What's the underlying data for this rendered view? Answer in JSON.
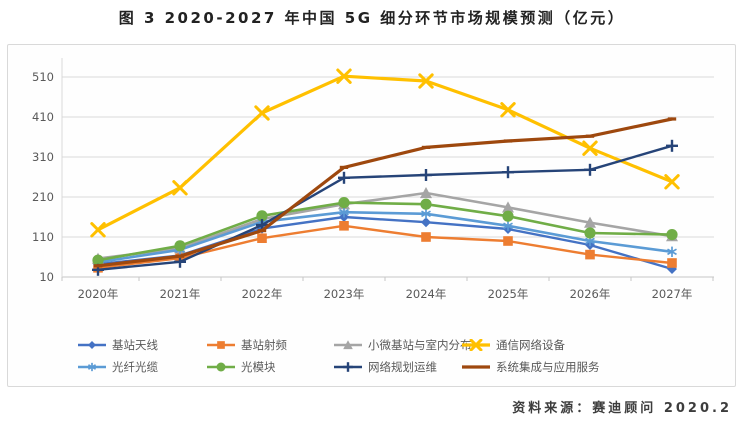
{
  "title": "图 3 2020-2027 年中国 5G 细分环节市场规模预测（亿元）",
  "source": "资料来源：赛迪顾问  2020.2",
  "chart_data": {
    "type": "line",
    "title": "图 3 2020-2027 年中国 5G 细分环节市场规模预测（亿元）",
    "unit": "亿元",
    "categories": [
      "2020年",
      "2021年",
      "2022年",
      "2023年",
      "2024年",
      "2025年",
      "2026年",
      "2027年"
    ],
    "yticks": [
      10,
      110,
      210,
      310,
      410,
      510
    ],
    "ylim": [
      10,
      560
    ],
    "grid": true,
    "legend_position": "bottom",
    "series": [
      {
        "name": "基站天线",
        "color": "#4472C4",
        "marker": "diamond",
        "values": [
          42,
          64,
          131,
          160,
          147,
          130,
          90,
          30
        ]
      },
      {
        "name": "基站射频",
        "color": "#ED7D31",
        "marker": "square",
        "values": [
          33,
          57,
          107,
          138,
          110,
          100,
          66,
          45
        ]
      },
      {
        "name": "小微基站与室内分布",
        "color": "#A5A5A5",
        "marker": "triangle",
        "values": [
          56,
          82,
          155,
          192,
          220,
          184,
          146,
          112
        ]
      },
      {
        "name": "通信网络设备",
        "color": "#FFC000",
        "marker": "x",
        "values": [
          128,
          233,
          420,
          512,
          500,
          428,
          332,
          248
        ]
      },
      {
        "name": "光纤光缆",
        "color": "#5B9BD5",
        "marker": "asterisk",
        "values": [
          47,
          78,
          148,
          172,
          168,
          138,
          100,
          73
        ]
      },
      {
        "name": "光模块",
        "color": "#70AD47",
        "marker": "circle",
        "values": [
          52,
          88,
          163,
          196,
          192,
          162,
          120,
          116
        ]
      },
      {
        "name": "网络规划运维",
        "color": "#264478",
        "marker": "plus",
        "values": [
          28,
          48,
          140,
          258,
          265,
          272,
          278,
          338
        ]
      },
      {
        "name": "系统集成与应用服务",
        "color": "#9E480E",
        "marker": "dash",
        "values": [
          38,
          62,
          126,
          284,
          334,
          350,
          362,
          405
        ]
      }
    ]
  }
}
